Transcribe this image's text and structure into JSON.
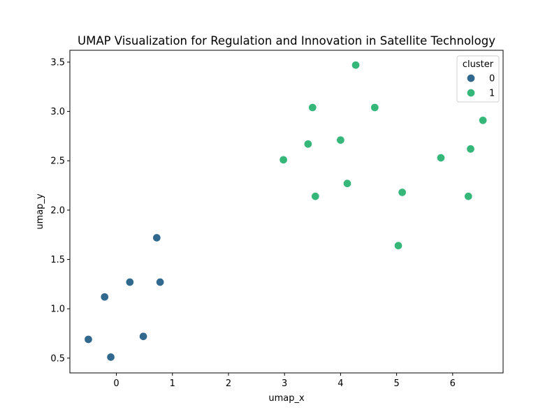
{
  "chart_data": {
    "type": "scatter",
    "title": "UMAP Visualization for Regulation and Innovation in Satellite Technology",
    "xlabel": "umap_x",
    "ylabel": "umap_y",
    "xlim": [
      -0.83,
      6.9
    ],
    "ylim": [
      0.35,
      3.62
    ],
    "xticks": [
      0,
      1,
      2,
      3,
      4,
      5,
      6
    ],
    "yticks": [
      0.5,
      1.0,
      1.5,
      2.0,
      2.5,
      3.0,
      3.5
    ],
    "ytick_labels": [
      "0.5",
      "1.0",
      "1.5",
      "2.0",
      "2.5",
      "3.0",
      "3.5"
    ],
    "grid": false,
    "legend": {
      "title": "cluster",
      "position": "top-right",
      "entries": [
        "0",
        "1"
      ]
    },
    "colors": {
      "0": "#31688e",
      "1": "#35b779"
    },
    "points": [
      {
        "x": -0.5,
        "y": 0.69,
        "cluster": 0
      },
      {
        "x": -0.1,
        "y": 0.51,
        "cluster": 0
      },
      {
        "x": -0.21,
        "y": 1.12,
        "cluster": 0
      },
      {
        "x": 0.24,
        "y": 1.27,
        "cluster": 0
      },
      {
        "x": 0.48,
        "y": 0.72,
        "cluster": 0
      },
      {
        "x": 0.72,
        "y": 1.72,
        "cluster": 0
      },
      {
        "x": 0.78,
        "y": 1.27,
        "cluster": 0
      },
      {
        "x": 2.98,
        "y": 2.51,
        "cluster": 1
      },
      {
        "x": 3.42,
        "y": 2.67,
        "cluster": 1
      },
      {
        "x": 3.5,
        "y": 3.04,
        "cluster": 1
      },
      {
        "x": 3.55,
        "y": 2.14,
        "cluster": 1
      },
      {
        "x": 4.0,
        "y": 2.71,
        "cluster": 1
      },
      {
        "x": 4.12,
        "y": 2.27,
        "cluster": 1
      },
      {
        "x": 4.27,
        "y": 3.47,
        "cluster": 1
      },
      {
        "x": 4.61,
        "y": 3.04,
        "cluster": 1
      },
      {
        "x": 5.03,
        "y": 1.64,
        "cluster": 1
      },
      {
        "x": 5.1,
        "y": 2.18,
        "cluster": 1
      },
      {
        "x": 5.79,
        "y": 2.53,
        "cluster": 1
      },
      {
        "x": 6.28,
        "y": 2.14,
        "cluster": 1
      },
      {
        "x": 6.32,
        "y": 2.62,
        "cluster": 1
      },
      {
        "x": 6.54,
        "y": 2.91,
        "cluster": 1
      }
    ]
  }
}
